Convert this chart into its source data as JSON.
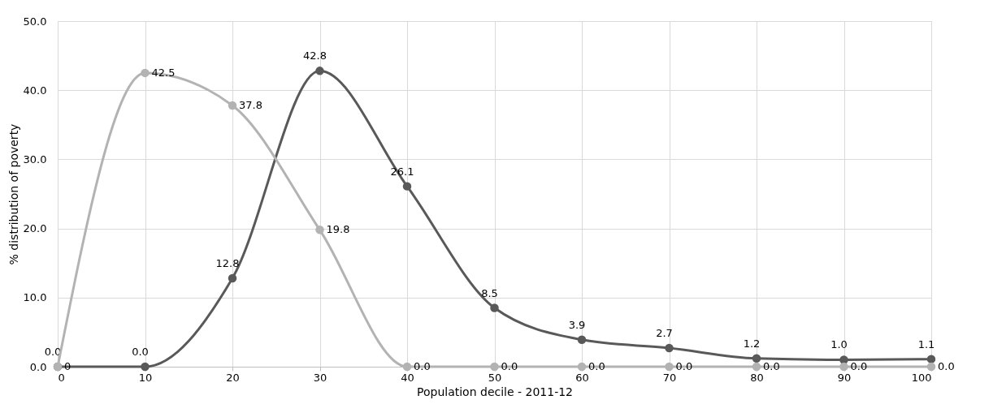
{
  "chart_data": {
    "type": "line",
    "xlabel": "Population decile - 2011-12",
    "ylabel": "% distribution of poverty",
    "x": [
      0,
      10,
      20,
      30,
      40,
      50,
      60,
      70,
      80,
      90,
      100
    ],
    "series": [
      {
        "color": "#595959",
        "values": [
          0,
          0.0,
          12.8,
          42.8,
          26.1,
          8.5,
          3.9,
          2.7,
          1.2,
          1.0,
          1.1
        ],
        "value_labels": [
          "0.0",
          "0.0",
          "12.8",
          "42.8",
          "26.1",
          "8.5",
          "3.9",
          "2.7",
          "1.2",
          "1.0",
          "1.1"
        ]
      },
      {
        "color": "#b3b3b3",
        "values": [
          0,
          42.5,
          37.8,
          19.8,
          0.0,
          0.0,
          0.0,
          0.0,
          0.0,
          0.0,
          0.0
        ],
        "value_labels": [
          "0",
          "42.5",
          "37.8",
          "19.8",
          "0.0",
          "0.0",
          "0.0",
          "0.0",
          "0.0",
          "0.0",
          "0.0"
        ]
      }
    ],
    "xlim": [
      0,
      100
    ],
    "xticks": [
      0,
      10,
      20,
      30,
      40,
      50,
      60,
      70,
      80,
      90,
      100
    ],
    "ylim": [
      0,
      50
    ],
    "yticks": [
      {
        "value": 0,
        "label": "0.0"
      },
      {
        "value": 10,
        "label": "10.0"
      },
      {
        "value": 20,
        "label": "20.0"
      },
      {
        "value": 30,
        "label": "30.0"
      },
      {
        "value": 40,
        "label": "40.0"
      },
      {
        "value": 50,
        "label": "50.0"
      }
    ],
    "grid": true,
    "marker": "circle"
  }
}
